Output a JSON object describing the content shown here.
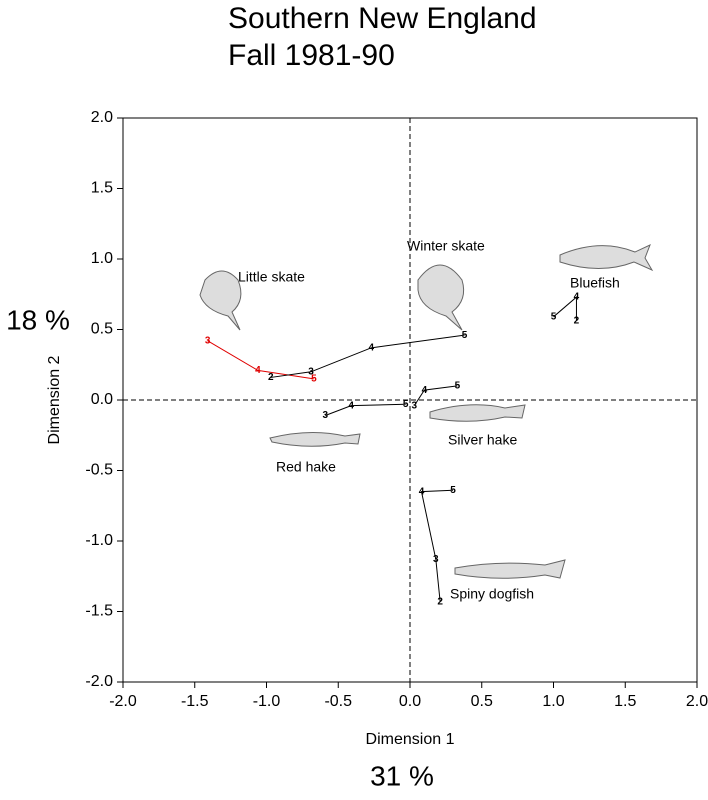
{
  "chart_data": {
    "type": "line",
    "title": "Southern New England",
    "subtitle": "Fall 1981-90",
    "x_label": "Dimension 1",
    "y_label": "Dimension 2",
    "x_variance": "31 %",
    "y_variance": "18 %",
    "xlim": [
      -2.0,
      2.0
    ],
    "ylim": [
      -2.0,
      2.0
    ],
    "xticks": [
      {
        "value": -2.0,
        "label": "-2.0"
      },
      {
        "value": -1.5,
        "label": "-1.5"
      },
      {
        "value": -1.0,
        "label": "-1.0"
      },
      {
        "value": -0.5,
        "label": "-0.5"
      },
      {
        "value": 0,
        "label": "0.0"
      },
      {
        "value": 0.5,
        "label": "0.5"
      },
      {
        "value": 1.0,
        "label": "1.0"
      },
      {
        "value": 1.5,
        "label": "1.5"
      },
      {
        "value": 2.0,
        "label": "2.0"
      }
    ],
    "yticks": [
      {
        "value": -2.0,
        "label": "-2.0"
      },
      {
        "value": -1.5,
        "label": "-1.5"
      },
      {
        "value": -1.0,
        "label": "-1.0"
      },
      {
        "value": -0.5,
        "label": "-0.5"
      },
      {
        "value": 0,
        "label": "0.0"
      },
      {
        "value": 0.5,
        "label": "0.5"
      },
      {
        "value": 1.0,
        "label": "1.0"
      },
      {
        "value": 1.5,
        "label": "1.5"
      },
      {
        "value": 2.0,
        "label": "2.0"
      }
    ],
    "series": [
      {
        "name": "Little skate",
        "color": "#e00000",
        "x": [
          -1.41,
          -1.06,
          -0.67
        ],
        "values": [
          0.42,
          0.21,
          0.15
        ],
        "point_labels": [
          "3",
          "4",
          "5"
        ]
      },
      {
        "name": "Winter skate",
        "color": "#000000",
        "x": [
          -0.97,
          -0.69,
          -0.27,
          0.38
        ],
        "values": [
          0.16,
          0.2,
          0.37,
          0.46
        ],
        "point_labels": [
          "2",
          "3",
          "4",
          "5"
        ]
      },
      {
        "name": "Red hake",
        "color": "#000000",
        "x": [
          -0.59,
          -0.41,
          -0.03
        ],
        "values": [
          -0.11,
          -0.04,
          -0.03
        ],
        "point_labels": [
          "3",
          "4",
          "5"
        ]
      },
      {
        "name": "Silver hake",
        "color": "#000000",
        "x": [
          0.03,
          0.1,
          0.33
        ],
        "values": [
          -0.04,
          0.07,
          0.1
        ],
        "point_labels": [
          "3",
          "4",
          "5"
        ]
      },
      {
        "name": "Bluefish",
        "color": "#000000",
        "x": [
          1.0,
          1.16,
          1.16
        ],
        "values": [
          0.59,
          0.73,
          0.56
        ],
        "point_labels": [
          "5",
          "4",
          "2"
        ]
      },
      {
        "name": "Spiny dogfish",
        "color": "#000000",
        "x": [
          0.3,
          0.08,
          0.18,
          0.21
        ],
        "values": [
          -0.64,
          -0.65,
          -1.13,
          -1.43
        ],
        "point_labels": [
          "5",
          "4",
          "3",
          "2"
        ]
      }
    ]
  }
}
